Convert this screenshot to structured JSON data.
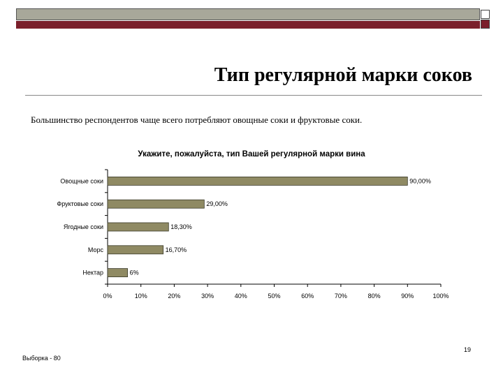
{
  "slide": {
    "title": "Тип регулярной марки соков",
    "subtitle": "Большинство респондентов чаще всего потребляют овощные соки и фруктовые соки.",
    "footer_left": "Выборка - 80",
    "page_number": "19"
  },
  "colors": {
    "bar_fill": "#8f8a63",
    "header_gray": "#a8a89a",
    "header_red": "#7a1f2b"
  },
  "chart_data": {
    "type": "bar",
    "orientation": "horizontal",
    "title": "Укажите, пожалуйста, тип Вашей регулярной марки вина",
    "categories": [
      "Овощные соки",
      "Фруктовые соки",
      "Ягодные соки",
      "Морс",
      "Нектар"
    ],
    "values": [
      90,
      29,
      18.3,
      16.7,
      6
    ],
    "value_labels": [
      "90,00%",
      "29,00%",
      "18,30%",
      "16,70%",
      "6%"
    ],
    "x_ticks": [
      "0%",
      "10%",
      "20%",
      "30%",
      "40%",
      "50%",
      "60%",
      "70%",
      "80%",
      "90%",
      "100%"
    ],
    "xlim": [
      0,
      100
    ],
    "grid": false,
    "legend": "none"
  }
}
